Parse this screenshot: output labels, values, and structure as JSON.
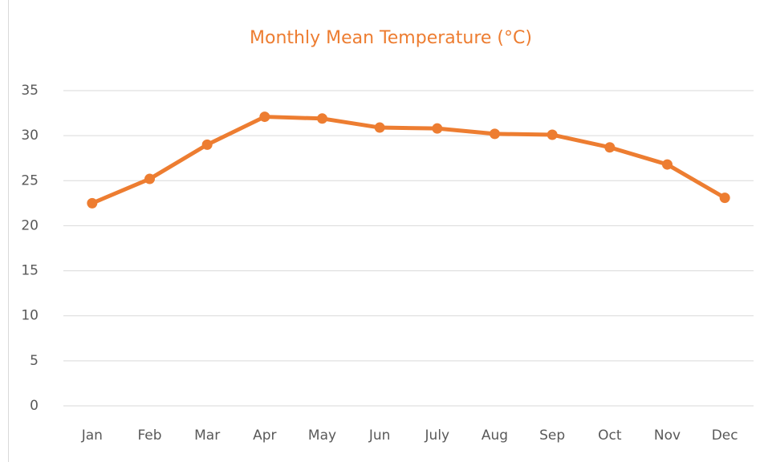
{
  "chart_data": {
    "type": "line",
    "title": "Monthly Mean Temperature (°C)",
    "categories": [
      "Jan",
      "Feb",
      "Mar",
      "Apr",
      "May",
      "Jun",
      "July",
      "Aug",
      "Sep",
      "Oct",
      "Nov",
      "Dec"
    ],
    "series": [
      {
        "name": "Temperature",
        "color": "#ed7d31",
        "values": [
          22.5,
          25.2,
          29.0,
          32.1,
          31.9,
          30.9,
          30.8,
          30.2,
          30.1,
          28.7,
          26.8,
          23.1
        ]
      }
    ],
    "ylim": [
      0,
      35
    ],
    "yticks": [
      0,
      5,
      10,
      15,
      20,
      25,
      30,
      35
    ],
    "grid": true,
    "title_color": "#ed7d31"
  }
}
